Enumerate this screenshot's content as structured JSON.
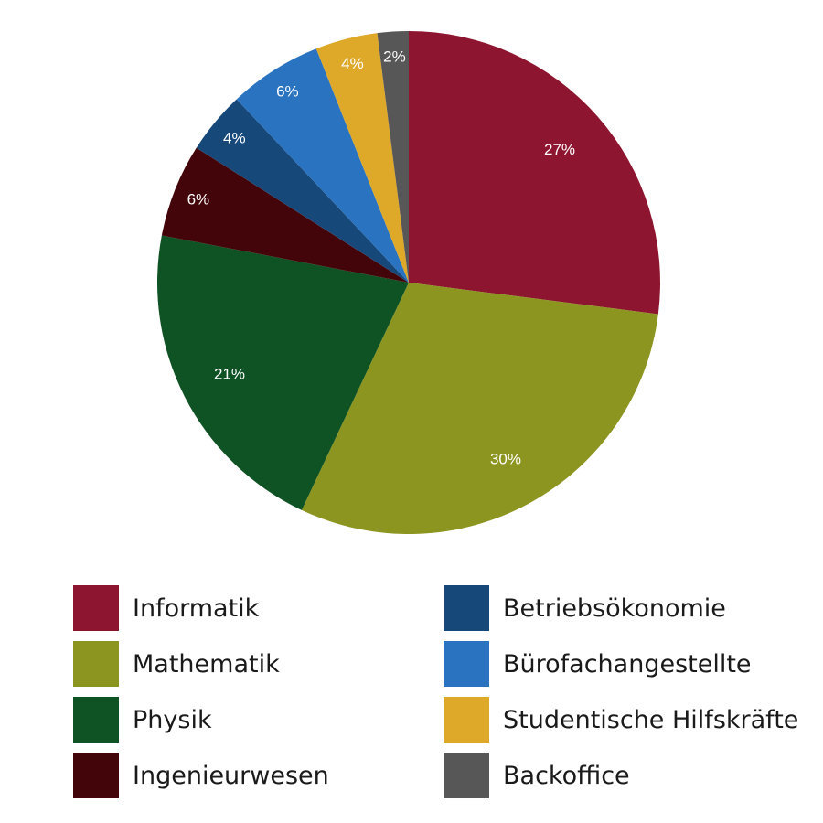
{
  "chart_data": {
    "type": "pie",
    "title": "",
    "start_angle_deg": 0,
    "direction": "clockwise",
    "legend_position": "bottom",
    "slices": [
      {
        "name": "Informatik",
        "value": 27,
        "label": "27%",
        "color": "#8e1530"
      },
      {
        "name": "Mathematik",
        "value": 30,
        "label": "30%",
        "color": "#8c951f"
      },
      {
        "name": "Physik",
        "value": 21,
        "label": "21%",
        "color": "#0f5223"
      },
      {
        "name": "Ingenieurwesen",
        "value": 6,
        "label": "6%",
        "color": "#430509"
      },
      {
        "name": "Betriebsökonomie",
        "value": 4,
        "label": "4%",
        "color": "#17487a"
      },
      {
        "name": "Bürofachangestellte",
        "value": 6,
        "label": "6%",
        "color": "#2a73c1"
      },
      {
        "name": "Studentische Hilfskräfte",
        "value": 4,
        "label": "4%",
        "color": "#dea829"
      },
      {
        "name": "Backoffice",
        "value": 2,
        "label": "2%",
        "color": "#575757"
      }
    ]
  }
}
